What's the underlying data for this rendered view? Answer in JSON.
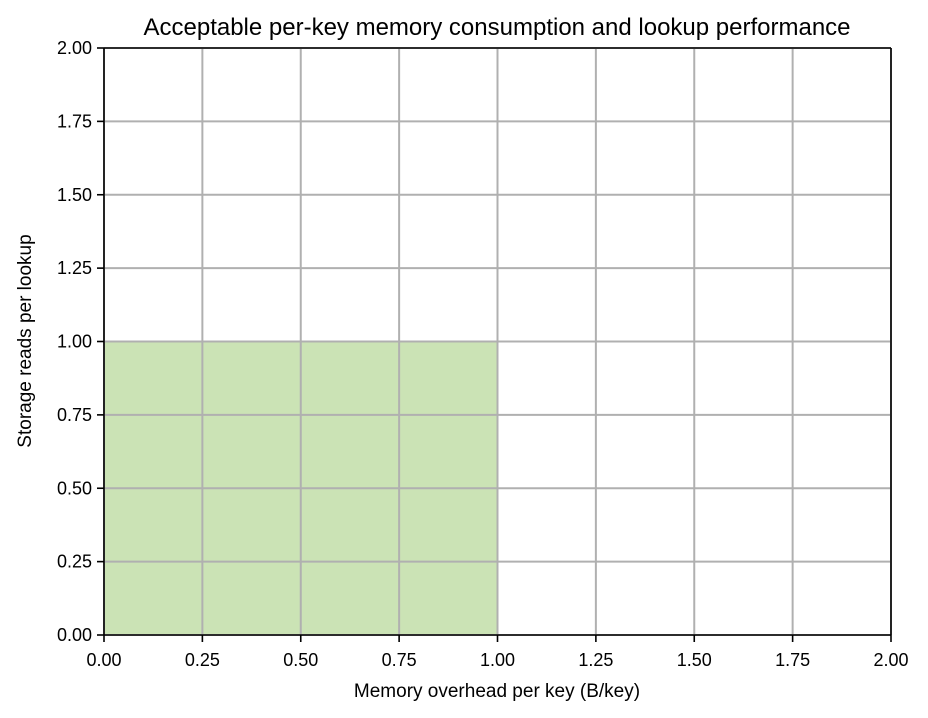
{
  "chart_data": {
    "type": "area",
    "title": "Acceptable per-key memory consumption and lookup performance",
    "xlabel": "Memory overhead per key (B/key)",
    "ylabel": "Storage reads per lookup",
    "xlim": [
      0,
      2
    ],
    "ylim": [
      0,
      2
    ],
    "x_ticks": [
      0,
      0.25,
      0.5,
      0.75,
      1.0,
      1.25,
      1.5,
      1.75,
      2.0
    ],
    "y_ticks": [
      0,
      0.25,
      0.5,
      0.75,
      1.0,
      1.25,
      1.5,
      1.75,
      2.0
    ],
    "x_tick_labels": [
      "0.00",
      "0.25",
      "0.50",
      "0.75",
      "1.00",
      "1.25",
      "1.50",
      "1.75",
      "2.00"
    ],
    "y_tick_labels": [
      "0.00",
      "0.25",
      "0.50",
      "0.75",
      "1.00",
      "1.25",
      "1.50",
      "1.75",
      "2.00"
    ],
    "grid": true,
    "regions": [
      {
        "x_range": [
          0,
          1.0
        ],
        "y_range": [
          0,
          1.0
        ],
        "color": "#cbe3b5"
      }
    ],
    "colors": {
      "grid": "#b0b0b0",
      "axis": "#000000",
      "region": "#cbe3b5"
    }
  }
}
